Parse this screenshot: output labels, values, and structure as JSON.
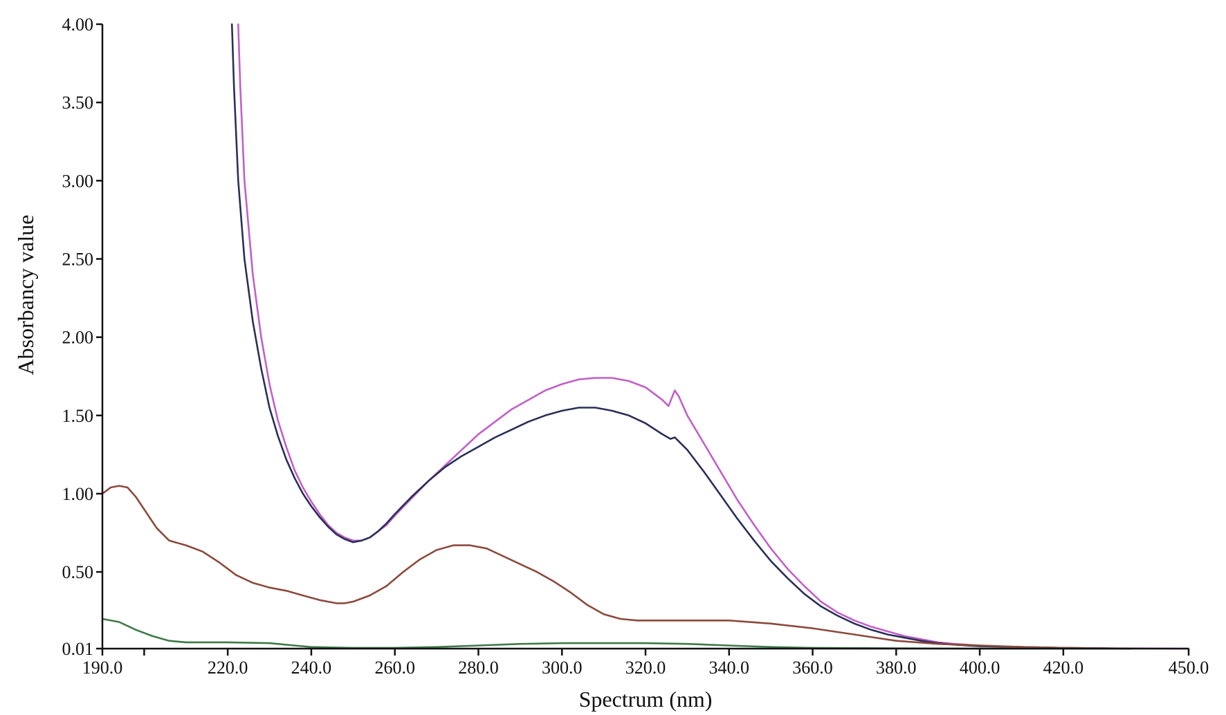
{
  "chart_data": {
    "type": "line",
    "title": "",
    "xlabel": "Spectrum (nm)",
    "ylabel": "Absorbancy value",
    "xlim": [
      190,
      450
    ],
    "ylim": [
      0.01,
      4.0
    ],
    "x_ticks": [
      190,
      200,
      220,
      240,
      260,
      280,
      300,
      320,
      340,
      360,
      380,
      400,
      420,
      450
    ],
    "x_tick_labels": [
      "190.0",
      "",
      "220.0",
      "240.0",
      "260.0",
      "280.0",
      "300.0",
      "320.0",
      "340.0",
      "360.0",
      "380.0",
      "400.0",
      "420.0",
      "450.0"
    ],
    "y_ticks": [
      0.01,
      0.5,
      1.0,
      1.5,
      2.0,
      2.5,
      3.0,
      3.5,
      4.0
    ],
    "y_tick_labels": [
      "0.01",
      "0.50",
      "1.00",
      "1.50",
      "2.00",
      "2.50",
      "3.00",
      "3.50",
      "4.00"
    ],
    "grid": false,
    "legend": "none",
    "series": [
      {
        "color": "#c25fc8",
        "points": [
          [
            222.5,
            4.0
          ],
          [
            223,
            3.6
          ],
          [
            224,
            3.0
          ],
          [
            226,
            2.4
          ],
          [
            228,
            2.0
          ],
          [
            230,
            1.7
          ],
          [
            232,
            1.47
          ],
          [
            234,
            1.3
          ],
          [
            236,
            1.15
          ],
          [
            238,
            1.04
          ],
          [
            240,
            0.95
          ],
          [
            242,
            0.87
          ],
          [
            244,
            0.8
          ],
          [
            246,
            0.75
          ],
          [
            248,
            0.72
          ],
          [
            250,
            0.7
          ],
          [
            252,
            0.7
          ],
          [
            254,
            0.72
          ],
          [
            256,
            0.76
          ],
          [
            258,
            0.8
          ],
          [
            260,
            0.86
          ],
          [
            264,
            0.97
          ],
          [
            268,
            1.08
          ],
          [
            272,
            1.18
          ],
          [
            276,
            1.28
          ],
          [
            280,
            1.38
          ],
          [
            284,
            1.46
          ],
          [
            288,
            1.54
          ],
          [
            292,
            1.6
          ],
          [
            296,
            1.66
          ],
          [
            300,
            1.7
          ],
          [
            304,
            1.73
          ],
          [
            308,
            1.74
          ],
          [
            312,
            1.74
          ],
          [
            316,
            1.72
          ],
          [
            320,
            1.68
          ],
          [
            324,
            1.6
          ],
          [
            325.5,
            1.56
          ],
          [
            327,
            1.66
          ],
          [
            328,
            1.62
          ],
          [
            330,
            1.5
          ],
          [
            334,
            1.32
          ],
          [
            338,
            1.14
          ],
          [
            342,
            0.96
          ],
          [
            346,
            0.8
          ],
          [
            350,
            0.65
          ],
          [
            354,
            0.52
          ],
          [
            358,
            0.41
          ],
          [
            362,
            0.31
          ],
          [
            366,
            0.24
          ],
          [
            370,
            0.19
          ],
          [
            374,
            0.15
          ],
          [
            378,
            0.12
          ],
          [
            382,
            0.09
          ],
          [
            386,
            0.07
          ],
          [
            390,
            0.05
          ],
          [
            394,
            0.04
          ],
          [
            400,
            0.03
          ],
          [
            410,
            0.02
          ],
          [
            420,
            0.015
          ],
          [
            430,
            0.012
          ],
          [
            450,
            0.01
          ]
        ]
      },
      {
        "color": "#2a2f58",
        "points": [
          [
            221,
            4.0
          ],
          [
            221.5,
            3.6
          ],
          [
            222.5,
            3.0
          ],
          [
            224,
            2.5
          ],
          [
            226,
            2.1
          ],
          [
            228,
            1.8
          ],
          [
            230,
            1.55
          ],
          [
            232,
            1.37
          ],
          [
            234,
            1.22
          ],
          [
            236,
            1.1
          ],
          [
            238,
            1.0
          ],
          [
            240,
            0.92
          ],
          [
            242,
            0.85
          ],
          [
            244,
            0.79
          ],
          [
            246,
            0.74
          ],
          [
            248,
            0.71
          ],
          [
            250,
            0.69
          ],
          [
            252,
            0.7
          ],
          [
            254,
            0.72
          ],
          [
            256,
            0.76
          ],
          [
            258,
            0.81
          ],
          [
            260,
            0.87
          ],
          [
            264,
            0.98
          ],
          [
            268,
            1.08
          ],
          [
            272,
            1.17
          ],
          [
            276,
            1.24
          ],
          [
            280,
            1.3
          ],
          [
            284,
            1.36
          ],
          [
            288,
            1.41
          ],
          [
            292,
            1.46
          ],
          [
            296,
            1.5
          ],
          [
            300,
            1.53
          ],
          [
            304,
            1.55
          ],
          [
            308,
            1.55
          ],
          [
            312,
            1.53
          ],
          [
            316,
            1.5
          ],
          [
            320,
            1.45
          ],
          [
            324,
            1.38
          ],
          [
            326,
            1.35
          ],
          [
            327,
            1.36
          ],
          [
            330,
            1.28
          ],
          [
            334,
            1.14
          ],
          [
            338,
            0.99
          ],
          [
            342,
            0.84
          ],
          [
            346,
            0.7
          ],
          [
            350,
            0.57
          ],
          [
            354,
            0.46
          ],
          [
            358,
            0.36
          ],
          [
            362,
            0.28
          ],
          [
            366,
            0.22
          ],
          [
            370,
            0.17
          ],
          [
            374,
            0.13
          ],
          [
            378,
            0.1
          ],
          [
            382,
            0.08
          ],
          [
            386,
            0.06
          ],
          [
            390,
            0.045
          ],
          [
            394,
            0.035
          ],
          [
            400,
            0.025
          ],
          [
            410,
            0.02
          ],
          [
            420,
            0.015
          ],
          [
            436,
            0.01
          ]
        ]
      },
      {
        "color": "#8b4a3c",
        "points": [
          [
            190,
            1.0
          ],
          [
            192,
            1.04
          ],
          [
            194,
            1.05
          ],
          [
            196,
            1.04
          ],
          [
            198,
            0.98
          ],
          [
            200,
            0.9
          ],
          [
            203,
            0.78
          ],
          [
            206,
            0.7
          ],
          [
            210,
            0.67
          ],
          [
            214,
            0.63
          ],
          [
            218,
            0.56
          ],
          [
            222,
            0.48
          ],
          [
            226,
            0.43
          ],
          [
            230,
            0.4
          ],
          [
            234,
            0.38
          ],
          [
            238,
            0.35
          ],
          [
            242,
            0.32
          ],
          [
            246,
            0.3
          ],
          [
            248,
            0.3
          ],
          [
            250,
            0.31
          ],
          [
            254,
            0.35
          ],
          [
            258,
            0.41
          ],
          [
            262,
            0.5
          ],
          [
            266,
            0.58
          ],
          [
            270,
            0.64
          ],
          [
            274,
            0.67
          ],
          [
            278,
            0.67
          ],
          [
            282,
            0.65
          ],
          [
            286,
            0.6
          ],
          [
            290,
            0.55
          ],
          [
            294,
            0.5
          ],
          [
            298,
            0.44
          ],
          [
            302,
            0.37
          ],
          [
            306,
            0.29
          ],
          [
            310,
            0.23
          ],
          [
            314,
            0.2
          ],
          [
            318,
            0.19
          ],
          [
            322,
            0.19
          ],
          [
            330,
            0.19
          ],
          [
            340,
            0.19
          ],
          [
            350,
            0.17
          ],
          [
            360,
            0.14
          ],
          [
            370,
            0.1
          ],
          [
            380,
            0.06
          ],
          [
            390,
            0.04
          ],
          [
            400,
            0.03
          ],
          [
            410,
            0.02
          ],
          [
            420,
            0.015
          ],
          [
            436,
            0.01
          ]
        ]
      },
      {
        "color": "#3e7a48",
        "points": [
          [
            190,
            0.2
          ],
          [
            194,
            0.18
          ],
          [
            198,
            0.13
          ],
          [
            202,
            0.09
          ],
          [
            206,
            0.06
          ],
          [
            210,
            0.05
          ],
          [
            220,
            0.05
          ],
          [
            230,
            0.045
          ],
          [
            236,
            0.03
          ],
          [
            240,
            0.02
          ],
          [
            250,
            0.015
          ],
          [
            260,
            0.015
          ],
          [
            270,
            0.02
          ],
          [
            280,
            0.03
          ],
          [
            290,
            0.04
          ],
          [
            300,
            0.045
          ],
          [
            310,
            0.045
          ],
          [
            320,
            0.045
          ],
          [
            330,
            0.04
          ],
          [
            340,
            0.03
          ],
          [
            350,
            0.02
          ],
          [
            360,
            0.015
          ],
          [
            380,
            0.012
          ],
          [
            400,
            0.01
          ],
          [
            420,
            0.01
          ],
          [
            436,
            0.01
          ]
        ]
      }
    ]
  }
}
